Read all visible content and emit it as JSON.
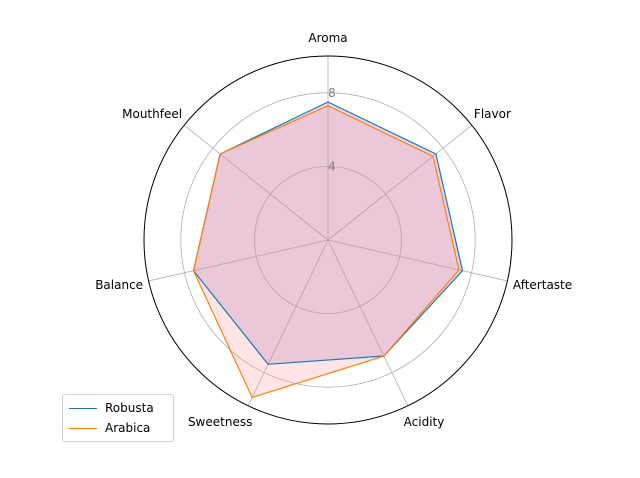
{
  "chart_data": {
    "type": "radar",
    "title": "",
    "categories": [
      "Aroma",
      "Flavor",
      "Aftertaste",
      "Acidity",
      "Sweetness",
      "Balance",
      "Mouthfeel"
    ],
    "radial_ticks": [
      4,
      8
    ],
    "rmax": 10,
    "grid": true,
    "legend_position": "lower-left",
    "series": [
      {
        "name": "Robusta",
        "values": [
          7.5,
          7.5,
          7.5,
          7.0,
          7.5,
          7.5,
          7.5
        ],
        "color": "#1f77b4",
        "fill": "#9467bd"
      },
      {
        "name": "Arabica",
        "values": [
          7.3,
          7.3,
          7.3,
          7.0,
          9.5,
          7.5,
          7.5
        ],
        "color": "#ff7f0e",
        "fill": "#ff9896"
      }
    ]
  }
}
